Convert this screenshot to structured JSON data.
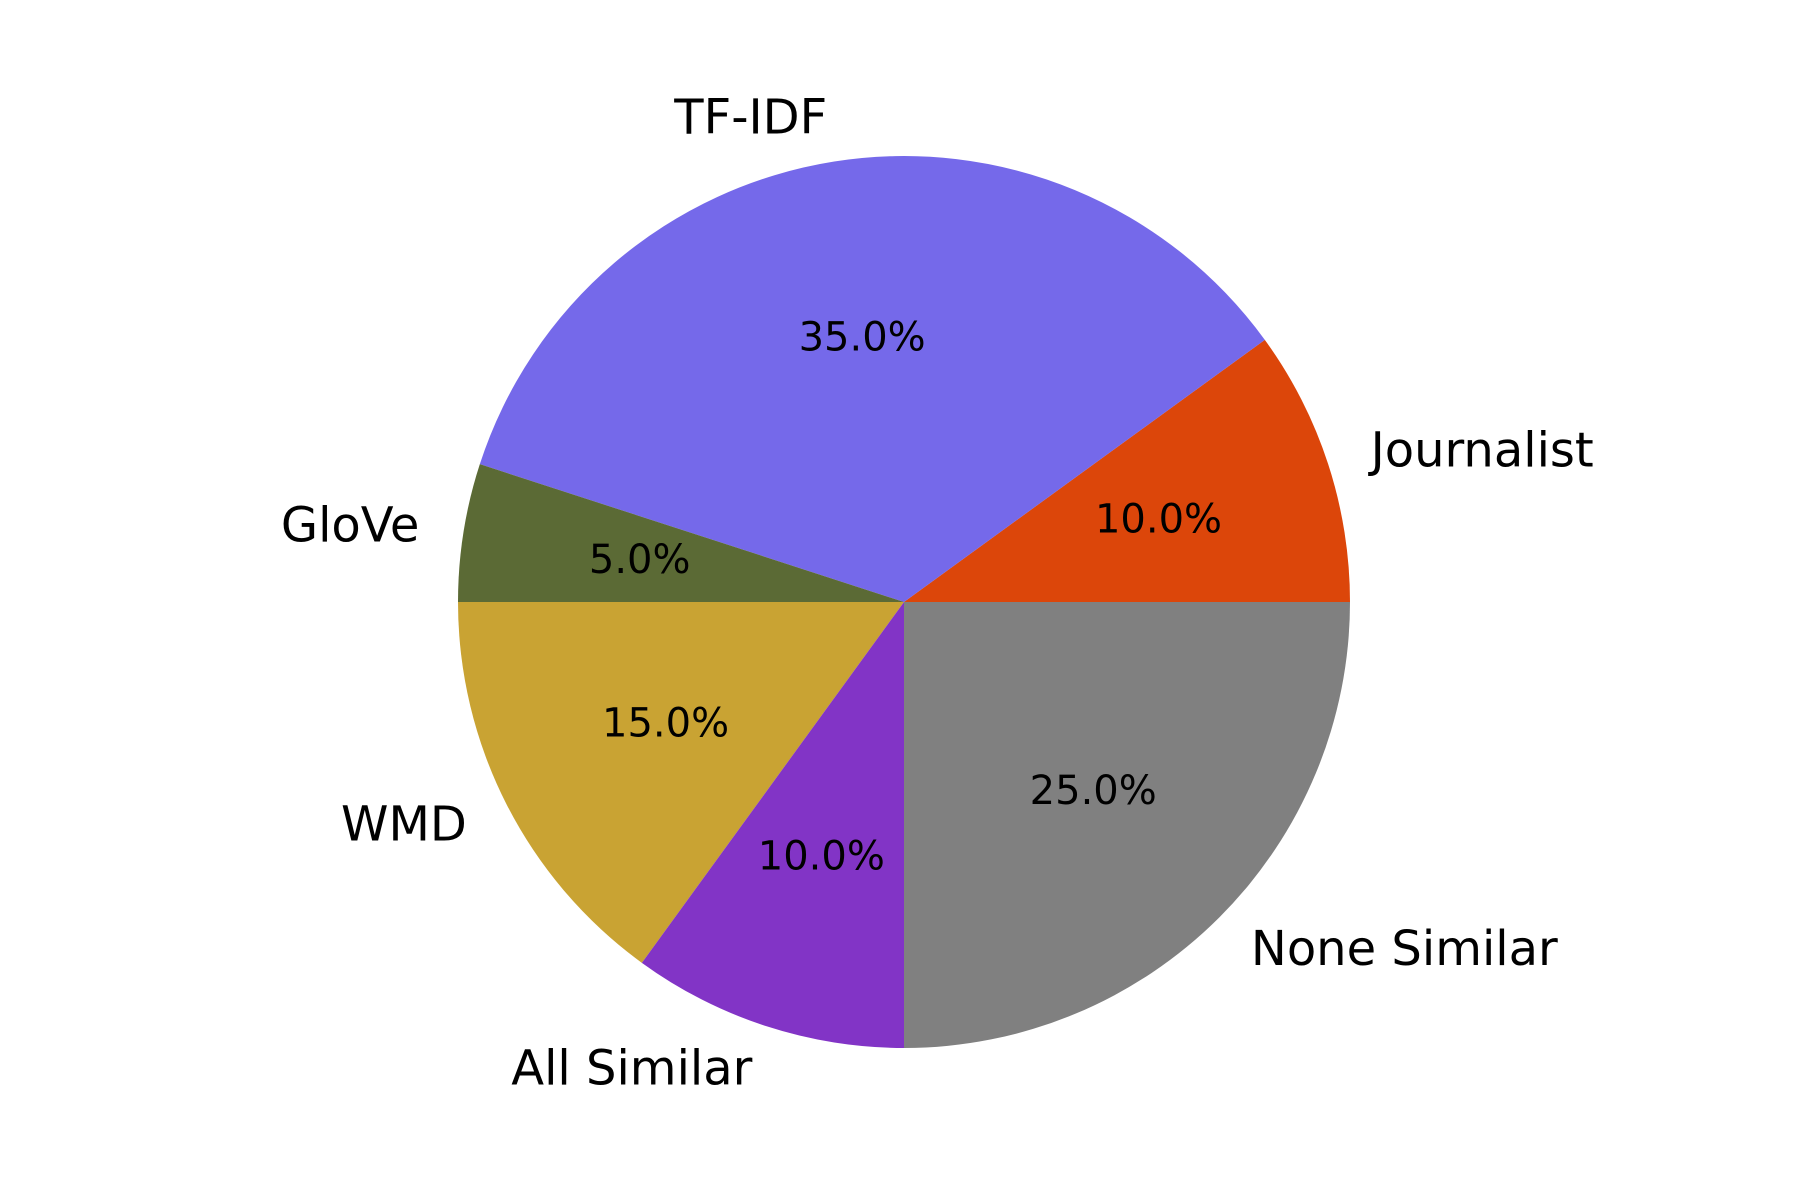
{
  "chart_data": {
    "type": "pie",
    "slices": [
      {
        "label": "Journalist",
        "value": 10.0,
        "pct_label": "10.0%",
        "color": "#dc460a"
      },
      {
        "label": "TF-IDF",
        "value": 35.0,
        "pct_label": "35.0%",
        "color": "#7569ea"
      },
      {
        "label": "GloVe",
        "value": 5.0,
        "pct_label": "5.0%",
        "color": "#5b6a35"
      },
      {
        "label": "WMD",
        "value": 15.0,
        "pct_label": "15.0%",
        "color": "#c9a333"
      },
      {
        "label": "All Similar",
        "value": 10.0,
        "pct_label": "10.0%",
        "color": "#8234c6"
      },
      {
        "label": "None Similar",
        "value": 25.0,
        "pct_label": "25.0%",
        "color": "#808080"
      }
    ],
    "start_angle_deg": 0,
    "direction": "counterclockwise",
    "title": "",
    "legend": "none"
  }
}
